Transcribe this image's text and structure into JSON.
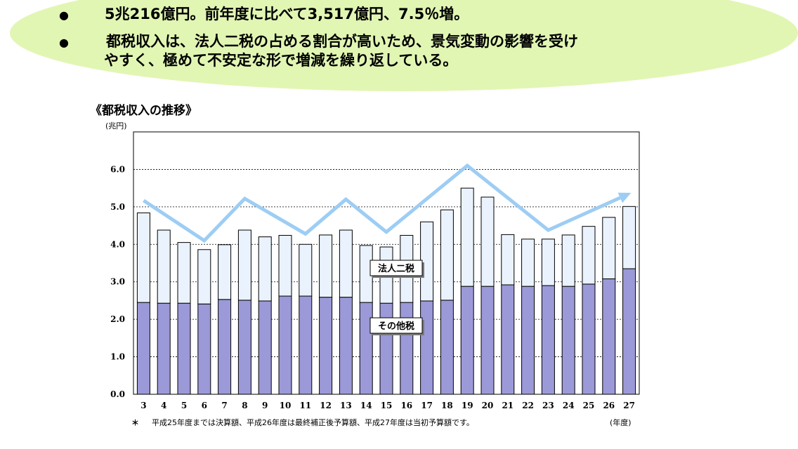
{
  "summary": {
    "line1": "5兆216億円。前年度に比べて3,517億円、7.5％増。",
    "line2a": "都税収入は、法人二税の占める割合が高いため、景気変動の影響を受け",
    "line2b": "やすく、極めて不安定な形で増減を繰り返している。",
    "bullet_symbol": "●"
  },
  "chart_data": {
    "type": "bar",
    "stacked": true,
    "title": "《都税収入の推移》",
    "ylabel": "(兆円)",
    "xlabel": "(年度)",
    "ylim": [
      0,
      7
    ],
    "yticks": [
      "0.0",
      "1.0",
      "2.0",
      "3.0",
      "4.0",
      "5.0",
      "6.0"
    ],
    "categories": [
      "3",
      "4",
      "5",
      "6",
      "7",
      "8",
      "9",
      "10",
      "11",
      "12",
      "13",
      "14",
      "15",
      "16",
      "17",
      "18",
      "19",
      "20",
      "21",
      "22",
      "23",
      "24",
      "25",
      "26",
      "27"
    ],
    "series": [
      {
        "name": "その他税",
        "color": "#9c99d8",
        "values": [
          2.45,
          2.43,
          2.43,
          2.41,
          2.53,
          2.51,
          2.49,
          2.62,
          2.62,
          2.59,
          2.59,
          2.45,
          2.43,
          2.45,
          2.49,
          2.51,
          2.88,
          2.88,
          2.92,
          2.88,
          2.9,
          2.88,
          2.94,
          3.08,
          3.35
        ]
      },
      {
        "name": "法人二税",
        "color": "#eaf3fd",
        "values": [
          2.39,
          1.95,
          1.62,
          1.45,
          1.46,
          1.87,
          1.71,
          1.62,
          1.38,
          1.66,
          1.79,
          1.52,
          1.5,
          1.79,
          2.11,
          2.41,
          2.62,
          2.38,
          1.34,
          1.26,
          1.24,
          1.37,
          1.54,
          1.64,
          1.66
        ]
      }
    ],
    "trend_arrow": {
      "color": "#9dcdf4",
      "points": [
        {
          "x": "3",
          "y": 5.17
        },
        {
          "x": "6",
          "y": 4.1
        },
        {
          "x": "8",
          "y": 5.22
        },
        {
          "x": "11",
          "y": 4.28
        },
        {
          "x": "13",
          "y": 5.2
        },
        {
          "x": "15",
          "y": 4.33
        },
        {
          "x": "19",
          "y": 6.1
        },
        {
          "x": "23",
          "y": 4.38
        },
        {
          "x": "27",
          "y": 5.35
        }
      ]
    },
    "grid": "dashed",
    "footnote_mark": "＊",
    "footnote": "平成25年度までは決算額、平成26年度は最終補正後予算額、平成27年度は当初予算額です。"
  }
}
